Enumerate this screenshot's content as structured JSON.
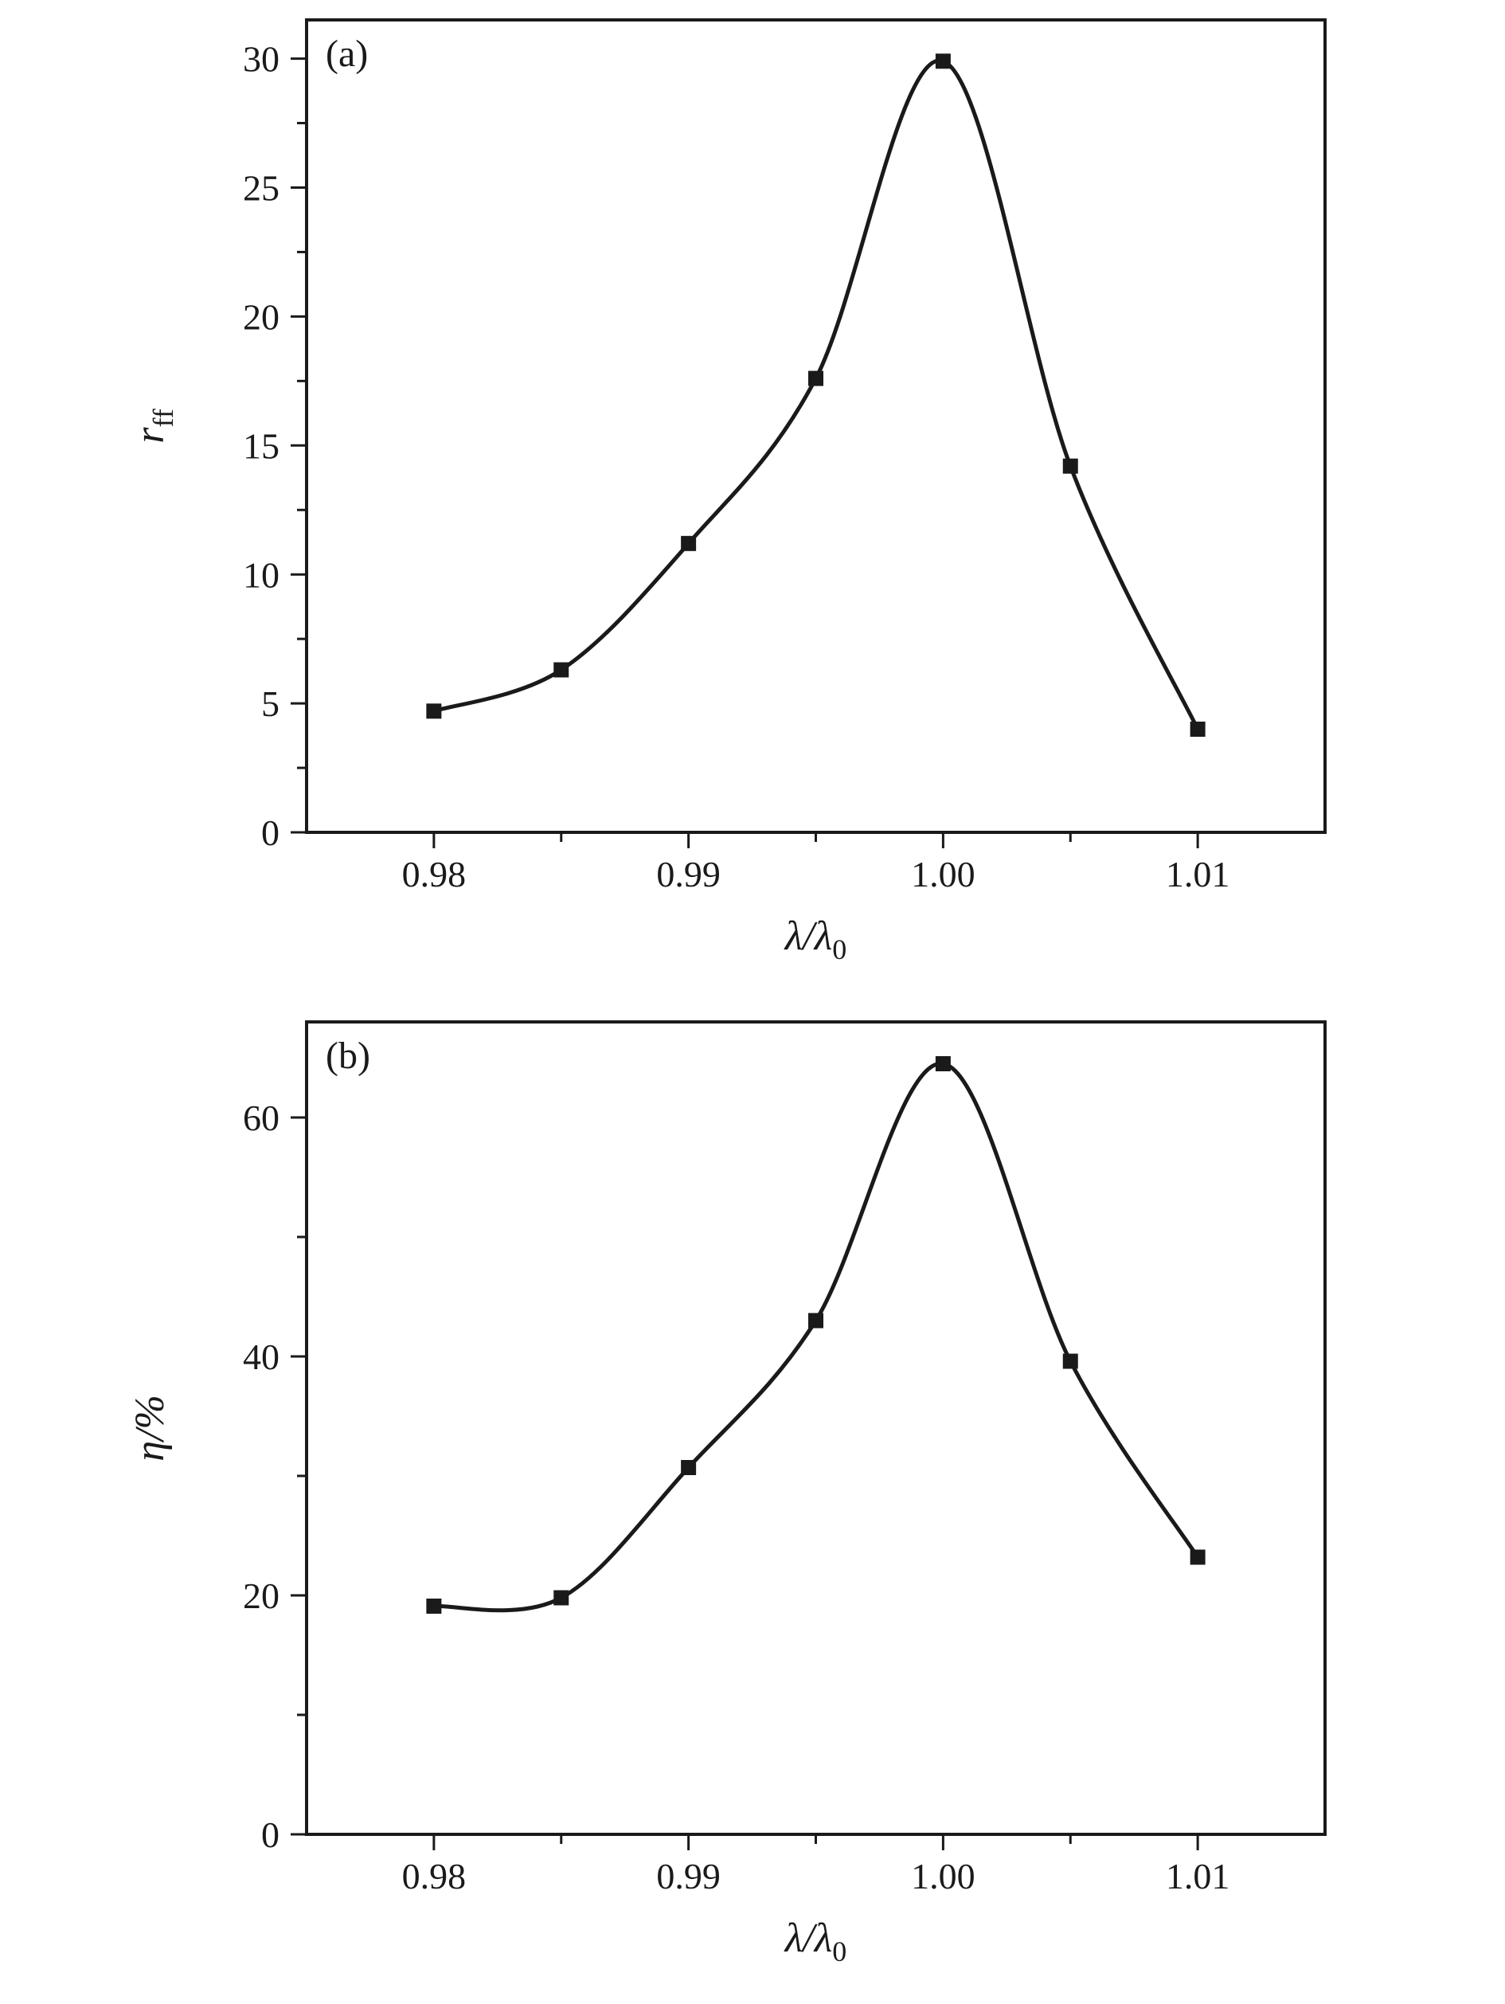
{
  "figure": {
    "background": "#ffffff",
    "ink_color": "#1a1a1a"
  },
  "chart_data": [
    {
      "id": "a",
      "type": "line",
      "panel_label": "(a)",
      "xlabel": {
        "main": "λ/λ",
        "sub": "0"
      },
      "ylabel": {
        "main": "r",
        "sub": "ff"
      },
      "x": [
        0.98,
        0.985,
        0.99,
        0.995,
        1.0,
        1.005,
        1.01
      ],
      "y": [
        4.7,
        6.3,
        11.2,
        17.6,
        29.9,
        14.2,
        4.0
      ],
      "xlim": [
        0.975,
        1.015
      ],
      "ylim": [
        0,
        31.5
      ],
      "xticks": [
        0.98,
        0.99,
        1.0,
        1.01
      ],
      "xtick_labels": [
        "0.98",
        "0.99",
        "1.00",
        "1.01"
      ],
      "yticks": [
        0,
        5,
        10,
        15,
        20,
        25,
        30
      ],
      "ytick_labels": [
        "0",
        "5",
        "10",
        "15",
        "20",
        "25",
        "30"
      ],
      "x_minor_step": 0.005,
      "y_minor_step": 2.5,
      "marker": "filled-square",
      "line_color": "#1a1a1a",
      "grid": false,
      "legend": null
    },
    {
      "id": "b",
      "type": "line",
      "panel_label": "(b)",
      "xlabel": {
        "main": "λ/λ",
        "sub": "0"
      },
      "ylabel": {
        "main": "η/%",
        "sub": ""
      },
      "x": [
        0.98,
        0.985,
        0.99,
        0.995,
        1.0,
        1.005,
        1.01
      ],
      "y": [
        19.1,
        19.8,
        30.7,
        43.0,
        64.5,
        39.6,
        23.2
      ],
      "xlim": [
        0.975,
        1.015
      ],
      "ylim": [
        0,
        68
      ],
      "xticks": [
        0.98,
        0.99,
        1.0,
        1.01
      ],
      "xtick_labels": [
        "0.98",
        "0.99",
        "1.00",
        "1.01"
      ],
      "yticks": [
        0,
        20,
        40,
        60
      ],
      "ytick_labels": [
        "0",
        "20",
        "40",
        "60"
      ],
      "x_minor_step": 0.005,
      "y_minor_step": 10,
      "marker": "filled-square",
      "line_color": "#1a1a1a",
      "grid": false,
      "legend": null
    }
  ]
}
